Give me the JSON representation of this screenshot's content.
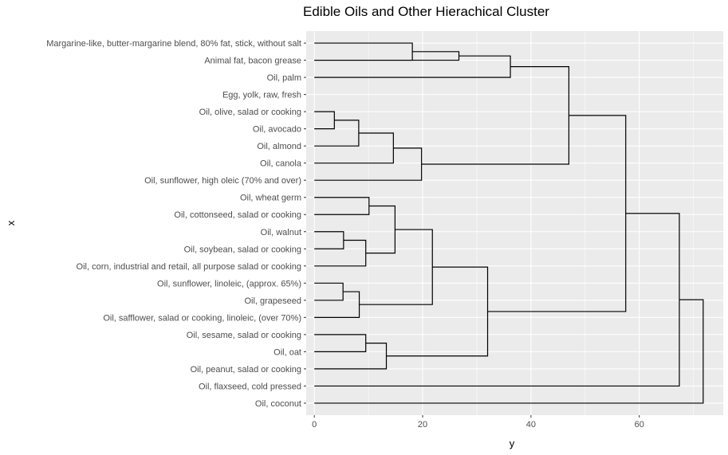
{
  "chart_data": {
    "type": "dendrogram",
    "title": "Edible Oils and Other Hierachical Cluster",
    "xlabel": "y",
    "ylabel": "x",
    "x_ticks": [
      0,
      20,
      40,
      60
    ],
    "xlim": [
      -1.5,
      75.5
    ],
    "grid": true,
    "leaves": [
      "Margarine-like, butter-margarine blend, 80% fat, stick, without salt",
      "Animal fat, bacon grease",
      "Oil, palm",
      "Egg, yolk, raw, fresh",
      "Oil, olive, salad or cooking",
      "Oil, avocado",
      "Oil, almond",
      "Oil, canola",
      "Oil, sunflower, high oleic (70% and over)",
      "Oil, wheat germ",
      "Oil, cottonseed, salad or cooking",
      "Oil, walnut",
      "Oil, soybean, salad or cooking",
      "Oil, corn, industrial and retail, all purpose salad or cooking",
      "Oil, sunflower, linoleic, (approx. 65%)",
      "Oil, grapeseed",
      "Oil, safflower, salad or cooking, linoleic, (over 70%)",
      "Oil, sesame, salad or cooking",
      "Oil, oat",
      "Oil, peanut, salad or cooking",
      "Oil, flaxseed, cold pressed",
      "Oil, coconut"
    ],
    "merges": [
      {
        "a": 0,
        "b": 1,
        "height": 18.1
      },
      {
        "a": "m0",
        "b": 1,
        "height": 26.7
      },
      {
        "a": "m1",
        "b": 2,
        "height": 36.2
      },
      {
        "a": 4,
        "b": 5,
        "height": 3.7
      },
      {
        "a": "m3",
        "b": 6,
        "height": 8.2
      },
      {
        "a": "m4",
        "b": 7,
        "height": 14.6
      },
      {
        "a": "m5",
        "b": 8,
        "height": 19.8
      },
      {
        "a": "m2",
        "b": "m6",
        "height": 47.0
      },
      {
        "a": 9,
        "b": 10,
        "height": 10.1
      },
      {
        "a": 11,
        "b": 12,
        "height": 5.4
      },
      {
        "a": "m9",
        "b": 13,
        "height": 9.5
      },
      {
        "a": "m8",
        "b": "m10",
        "height": 14.9
      },
      {
        "a": 14,
        "b": 15,
        "height": 5.3
      },
      {
        "a": "m12",
        "b": 16,
        "height": 8.3
      },
      {
        "a": "m11",
        "b": "m13",
        "height": 21.8
      },
      {
        "a": 17,
        "b": 18,
        "height": 9.5
      },
      {
        "a": "m15",
        "b": 19,
        "height": 13.3
      },
      {
        "a": "m14",
        "b": "m16",
        "height": 32.0
      },
      {
        "a": "m7",
        "b": "m17",
        "height": 57.5
      },
      {
        "a": "m18",
        "b": 20,
        "height": 67.4
      },
      {
        "a": "m19",
        "b": 21,
        "height": 71.8
      }
    ]
  }
}
